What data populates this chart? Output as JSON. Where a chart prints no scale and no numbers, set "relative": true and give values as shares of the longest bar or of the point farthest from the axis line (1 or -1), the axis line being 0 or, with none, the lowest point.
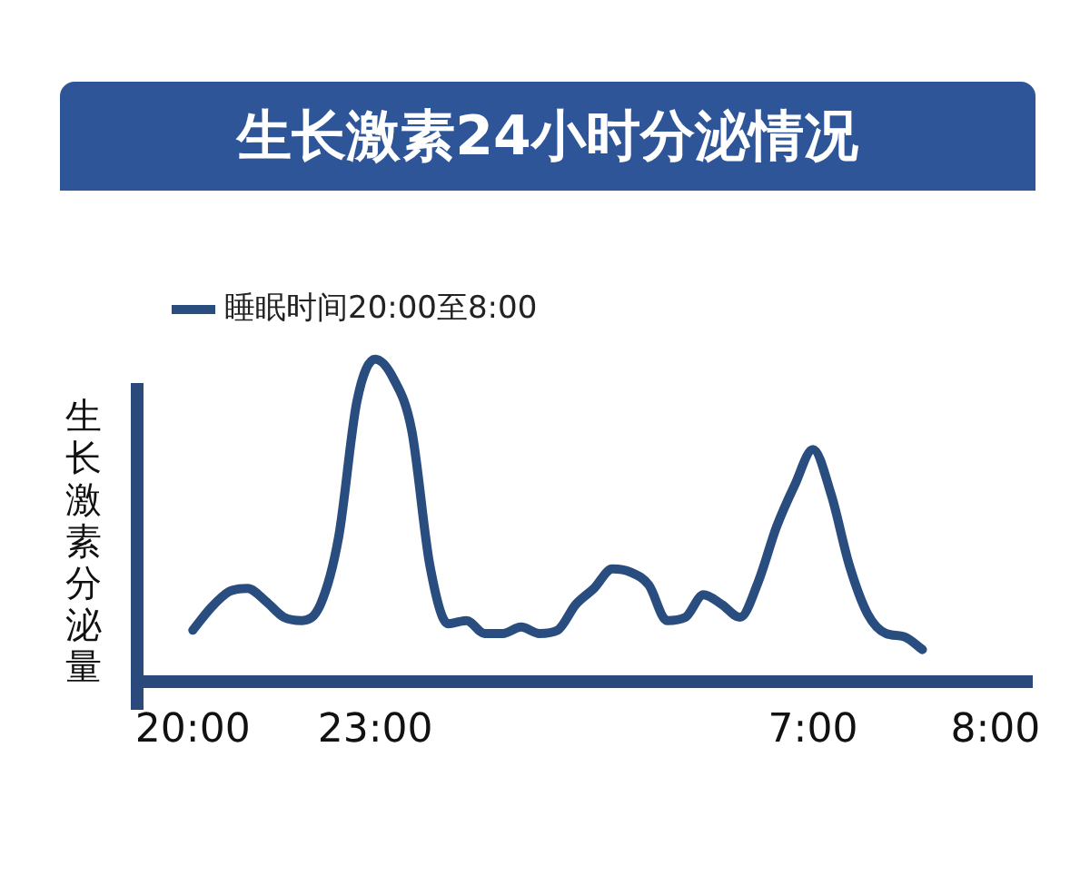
{
  "chart_data": {
    "type": "line",
    "title": "生长激素24小时分泌情况",
    "ylabel": "生长激素分泌量",
    "relative": true,
    "legend": "top left",
    "marker": "none",
    "line_style": "solid",
    "categories": [
      null,
      null,
      null,
      "20:00",
      null,
      null,
      null,
      null,
      null,
      null,
      null,
      null,
      null,
      "23:00",
      null,
      null,
      null,
      null,
      null,
      null,
      null,
      null,
      null,
      null,
      null,
      null,
      null,
      null,
      null,
      null,
      null,
      null,
      null,
      null,
      null,
      null,
      null,
      "7:00",
      null,
      null,
      null,
      null,
      null,
      null,
      null,
      null,
      null,
      "8:00",
      null,
      null
    ],
    "series": [
      {
        "name": "睡眠时间20:00至8:00",
        "color": "#2a4d80",
        "values": [
          null,
          null,
          null,
          0.16,
          0.23,
          0.28,
          0.29,
          0.25,
          0.2,
          0.19,
          0.24,
          0.45,
          0.87,
          1,
          0.94,
          0.78,
          0.36,
          0.18,
          0.19,
          0.15,
          0.15,
          0.17,
          0.15,
          0.16,
          0.24,
          0.29,
          0.35,
          0.34,
          0.3,
          0.19,
          0.2,
          0.27,
          0.24,
          0.2,
          0.31,
          0.48,
          0.61,
          0.72,
          0.58,
          0.36,
          0.21,
          0.15,
          0.14,
          0.1,
          null,
          null,
          null,
          null,
          null,
          null
        ]
      }
    ]
  }
}
